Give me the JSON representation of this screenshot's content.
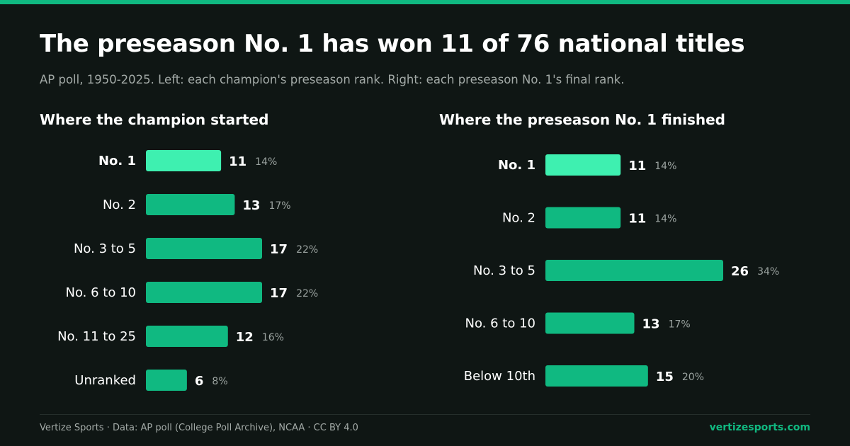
{
  "header": {
    "title": "The preseason No. 1 has won 11 of 76 national titles",
    "subtitle": "AP poll, 1950-2025. Left: each champion's preseason rank. Right: each preseason No. 1's final rank."
  },
  "colors": {
    "background": "#0f1614",
    "accent": "#10b981",
    "highlight": "#3ef0b0",
    "muted_text": "#a3aaa7"
  },
  "chart_data": [
    {
      "type": "bar",
      "orientation": "horizontal",
      "title": "Where the champion started",
      "categories": [
        "No. 1",
        "No. 2",
        "No. 3 to 5",
        "No. 6 to 10",
        "No. 11 to 25",
        "Unranked"
      ],
      "values": [
        11,
        13,
        17,
        17,
        12,
        6
      ],
      "percent_labels": [
        "14%",
        "17%",
        "22%",
        "22%",
        "16%",
        "8%"
      ],
      "highlight_category": "No. 1",
      "xlim": [
        0,
        17
      ],
      "grid": false
    },
    {
      "type": "bar",
      "orientation": "horizontal",
      "title": "Where the preseason No. 1 finished",
      "categories": [
        "No. 1",
        "No. 2",
        "No. 3 to 5",
        "No. 6 to 10",
        "Below 10th"
      ],
      "values": [
        11,
        11,
        26,
        13,
        15
      ],
      "percent_labels": [
        "14%",
        "14%",
        "34%",
        "17%",
        "20%"
      ],
      "highlight_category": "No. 1",
      "xlim": [
        0,
        26
      ],
      "grid": false
    }
  ],
  "footer": {
    "credit": "Vertize Sports · Data: AP poll (College Poll Archive), NCAA · CC BY 4.0",
    "site": "vertizesports.com"
  }
}
